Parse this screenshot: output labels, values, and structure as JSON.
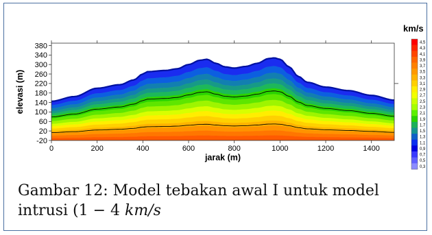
{
  "chart_data": {
    "type": "heatmap",
    "xlabel": "jarak (m)",
    "ylabel": "elevasi (m)",
    "xlim": [
      0,
      1500
    ],
    "ylim": [
      -20,
      390
    ],
    "x_ticks": [
      0,
      200,
      400,
      600,
      800,
      1000,
      1200,
      1400
    ],
    "y_ticks": [
      -20,
      20,
      60,
      100,
      140,
      180,
      220,
      260,
      300,
      340,
      380
    ],
    "surface": {
      "x": [
        0,
        100,
        200,
        300,
        360,
        400,
        420,
        500,
        550,
        600,
        650,
        680,
        720,
        760,
        800,
        850,
        900,
        950,
        975,
        1000,
        1040,
        1080,
        1120,
        1200,
        1300,
        1400,
        1500
      ],
      "elevation": [
        145,
        165,
        200,
        215,
        235,
        260,
        270,
        275,
        282,
        300,
        318,
        322,
        305,
        290,
        285,
        292,
        305,
        325,
        328,
        322,
        290,
        250,
        225,
        205,
        190,
        170,
        150
      ]
    },
    "contour_lines_m": [
      90,
      175
    ],
    "colorbar": {
      "title": "km/s",
      "ticks": [
        "4,5",
        "4,3",
        "4,1",
        "3,9",
        "3,7",
        "3,5",
        "3,3",
        "3,1",
        "2,9",
        "2,7",
        "2,5",
        "2,3",
        "2,1",
        "1,9",
        "1,7",
        "1,5",
        "1,3",
        "1,1",
        "0,9",
        "0,7",
        "0,5",
        "0,3"
      ],
      "colors": [
        "#ff0000",
        "#ff2400",
        "#ff4600",
        "#ff6600",
        "#ff8000",
        "#ff9900",
        "#ffb300",
        "#ffd000",
        "#ffee00",
        "#f2ff00",
        "#ccff00",
        "#a6ff00",
        "#5cf000",
        "#2ad300",
        "#1cb05a",
        "#169490",
        "#1060c8",
        "#0a2ef0",
        "#0000e0",
        "#3a3aff",
        "#6060ff",
        "#8c8cff"
      ]
    }
  },
  "caption": {
    "text_main": "Gambar 12: Model tebakan awal I untuk model",
    "text_line2_prefix": "intrusi (1 − 4 ",
    "text_line2_unit": "km/s"
  }
}
